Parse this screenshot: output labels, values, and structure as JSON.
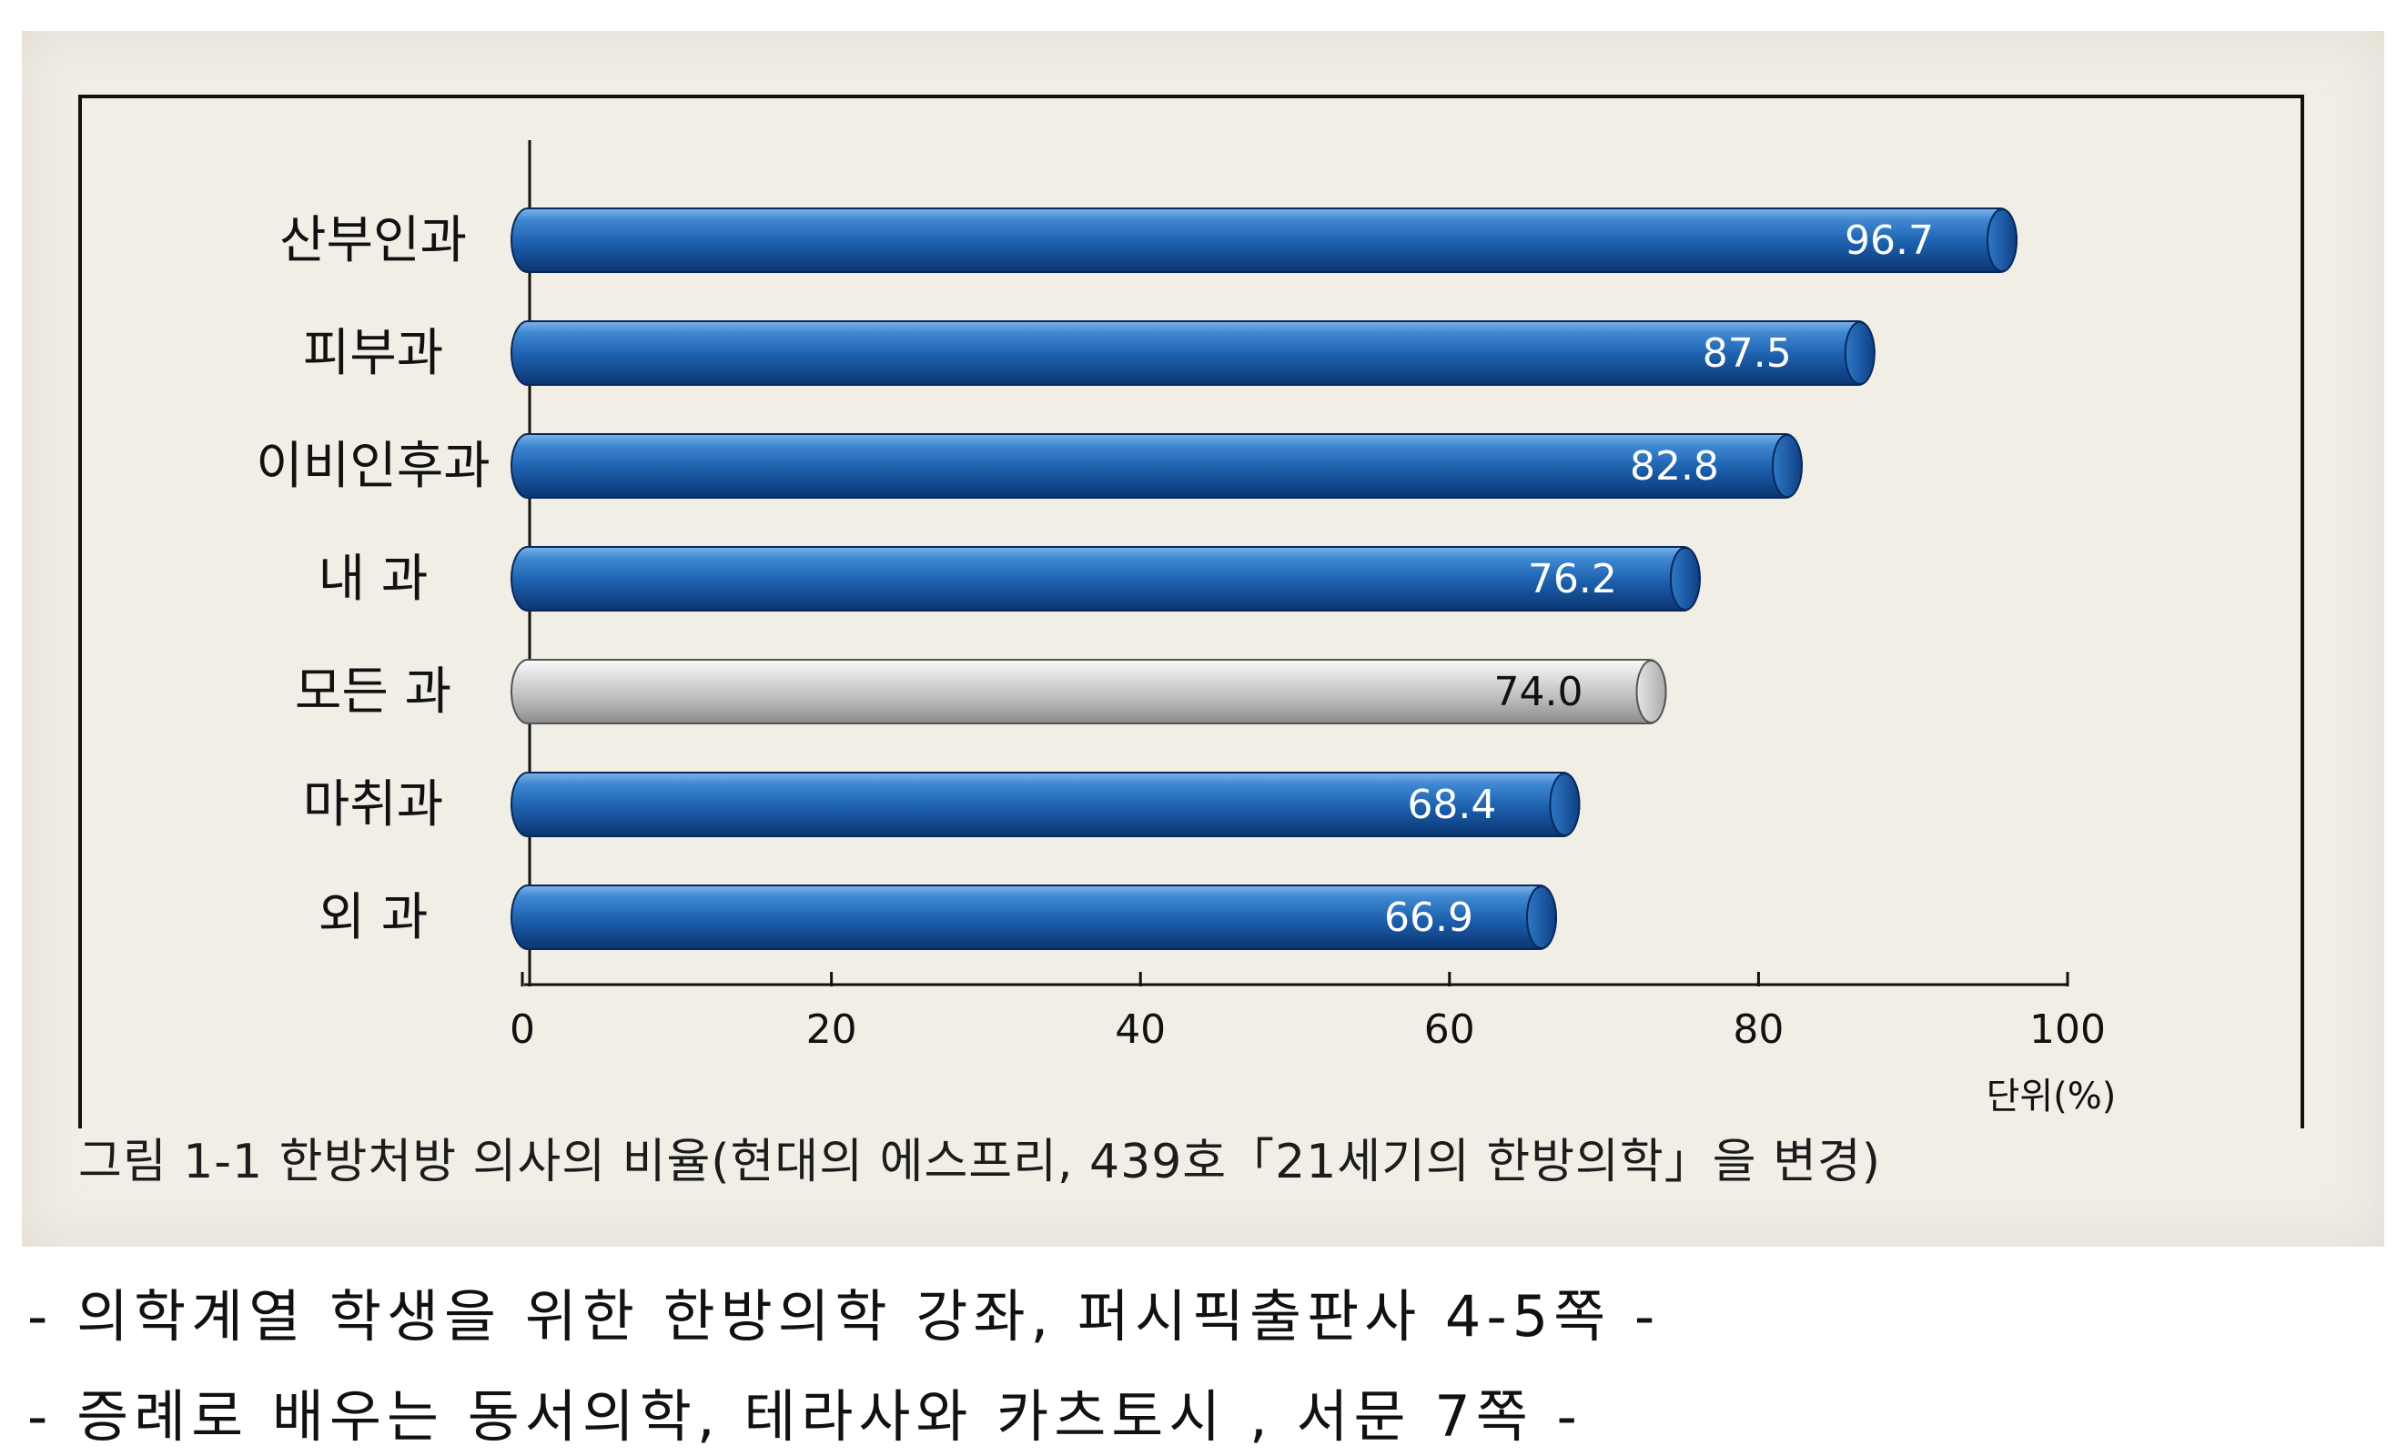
{
  "figure": {
    "caption": "그림 1-1 한방처방 의사의 비율(현대의 에스프리, 439호「21세기의 한방의학」을 변경)"
  },
  "sources": [
    "- 의학계열 학생을 위한 한방의학 강좌, 퍼시픽출판사 4-5쪽 -",
    "- 증례로 배우는 동서의학, 테라사와 카츠토시 , 서문 7쪽 -"
  ],
  "chart_data": {
    "type": "bar",
    "orientation": "horizontal",
    "categories": [
      "산부인과",
      "피부과",
      "이비인후과",
      "내 과",
      "모든 과",
      "마취과",
      "외 과"
    ],
    "values": [
      96.7,
      87.5,
      82.8,
      76.2,
      74.0,
      68.4,
      66.9
    ],
    "value_labels": [
      "96.7",
      "87.5",
      "82.8",
      "76.2",
      "74.0",
      "68.4",
      "66.9"
    ],
    "highlight_category": "모든 과",
    "x_ticks": [
      "0",
      "20",
      "40",
      "60",
      "80",
      "100"
    ],
    "xlim": [
      0,
      100
    ],
    "unit_label": "단위(%)",
    "grid": false,
    "colors": {
      "bar": "#1f67b5",
      "bar_highlight": "#c4c4c4",
      "label_on_bar": "#ffffff",
      "label_on_highlight": "#111111"
    }
  }
}
